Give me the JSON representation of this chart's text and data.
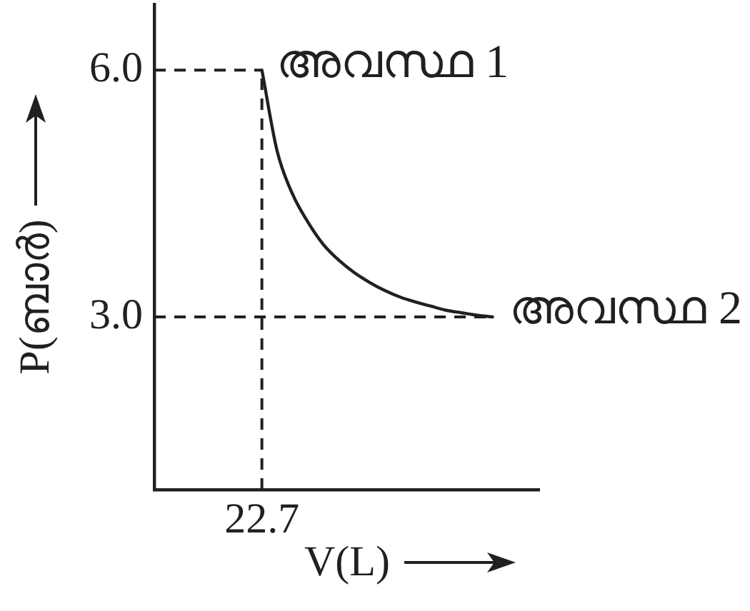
{
  "chart_data": {
    "type": "line",
    "xlabel": "V(L)",
    "ylabel": "P(ബാർ)",
    "categories": [
      null,
      null,
      null,
      null,
      null,
      null,
      null,
      "22.7",
      null,
      null,
      null,
      null,
      null,
      null,
      null,
      null,
      null,
      null,
      null,
      null,
      null,
      null,
      null,
      null,
      null,
      null
    ],
    "values": [
      null,
      null,
      null,
      null,
      null,
      null,
      null,
      6.0,
      5.01,
      4.49,
      4.15,
      3.88,
      3.69,
      3.54,
      3.42,
      3.32,
      3.24,
      3.18,
      3.13,
      3.08,
      3.05,
      3.02,
      3.0,
      null,
      null,
      null
    ],
    "color": "#231f20",
    "marker": "none",
    "line_style": "solid",
    "ylim": [
      0.9,
      6.8
    ],
    "yticks": [
      {
        "value": 6.0,
        "label": "6.0"
      },
      {
        "value": 3.0,
        "label": "3.0"
      }
    ],
    "ref_lines": [
      {
        "axis": "y",
        "value": 6.0,
        "line_style": "dashed"
      },
      {
        "axis": "y",
        "value": 3.0,
        "line_style": "dashed"
      },
      {
        "axis": "x",
        "value": "22.7",
        "line_style": "dashed"
      }
    ],
    "annotations": [
      {
        "text": "അവസ്ഥ 1",
        "x": "22.7",
        "y": 6.0
      },
      "അവസ്ഥ 2"
    ]
  }
}
